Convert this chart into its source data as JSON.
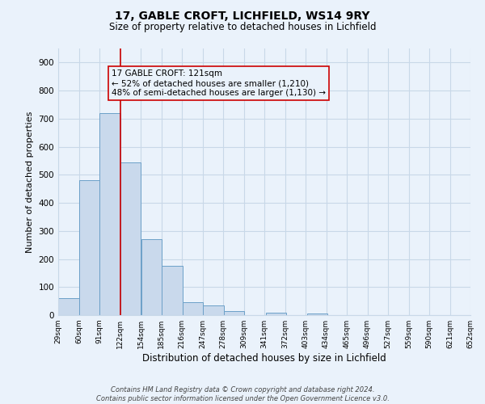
{
  "title": "17, GABLE CROFT, LICHFIELD, WS14 9RY",
  "subtitle": "Size of property relative to detached houses in Lichfield",
  "xlabel": "Distribution of detached houses by size in Lichfield",
  "ylabel": "Number of detached properties",
  "bar_left_edges": [
    29,
    60,
    91,
    122,
    154,
    185,
    216,
    247,
    278,
    309,
    341,
    372,
    403,
    434,
    465,
    496,
    527,
    559,
    590,
    621
  ],
  "bar_heights": [
    60,
    480,
    720,
    545,
    270,
    175,
    47,
    35,
    15,
    0,
    8,
    0,
    5,
    0,
    0,
    0,
    0,
    0,
    0,
    0
  ],
  "bin_width": 31,
  "tick_labels": [
    "29sqm",
    "60sqm",
    "91sqm",
    "122sqm",
    "154sqm",
    "185sqm",
    "216sqm",
    "247sqm",
    "278sqm",
    "309sqm",
    "341sqm",
    "372sqm",
    "403sqm",
    "434sqm",
    "465sqm",
    "496sqm",
    "527sqm",
    "559sqm",
    "590sqm",
    "621sqm",
    "652sqm"
  ],
  "bar_color": "#c9d9ec",
  "bar_edge_color": "#6ca0c8",
  "vline_x": 122,
  "vline_color": "#cc0000",
  "ylim": [
    0,
    950
  ],
  "yticks": [
    0,
    100,
    200,
    300,
    400,
    500,
    600,
    700,
    800,
    900
  ],
  "annotation_line1": "17 GABLE CROFT: 121sqm",
  "annotation_line2": "← 52% of detached houses are smaller (1,210)",
  "annotation_line3": "48% of semi-detached houses are larger (1,130) →",
  "annotation_box_color": "#cc0000",
  "grid_color": "#c8d8e8",
  "background_color": "#eaf2fb",
  "footer_line1": "Contains HM Land Registry data © Crown copyright and database right 2024.",
  "footer_line2": "Contains public sector information licensed under the Open Government Licence v3.0."
}
